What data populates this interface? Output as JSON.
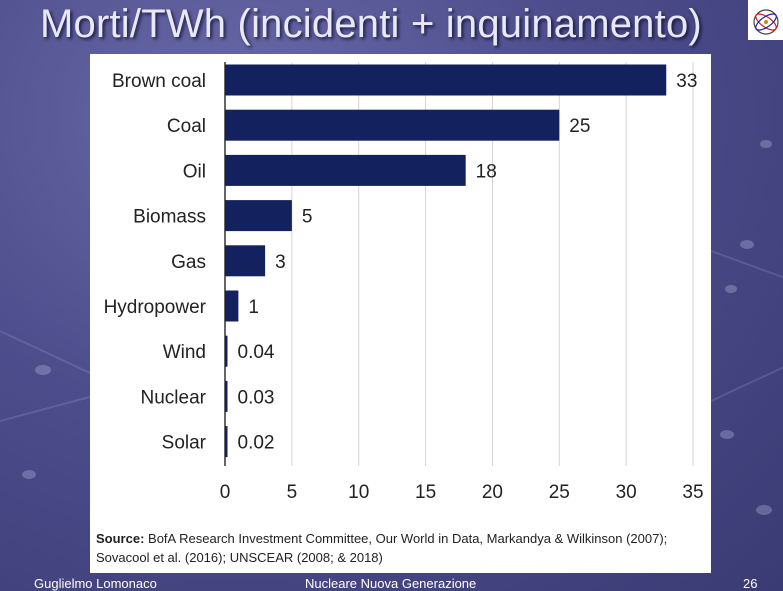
{
  "slide": {
    "title": "Morti/TWh (incidenti + inquinamento)",
    "footer_left": "Guglielmo Lomonaco",
    "footer_center": "Nucleare Nuova Generazione",
    "page_number": "26"
  },
  "colors": {
    "bar": "#13215e",
    "background": "#4d4d8c",
    "card": "#ffffff"
  },
  "source": {
    "label": "Source:",
    "text": "BofA Research Investment Committee, Our World in Data, Markandya & Wilkinson (2007); Sovacool et al. (2016); UNSCEAR (2008; & 2018)"
  },
  "chart_data": {
    "type": "bar",
    "orientation": "horizontal",
    "categories": [
      "Brown coal",
      "Coal",
      "Oil",
      "Biomass",
      "Gas",
      "Hydropower",
      "Wind",
      "Nuclear",
      "Solar"
    ],
    "values": [
      33,
      25,
      18,
      5,
      3,
      1,
      0.04,
      0.03,
      0.02
    ],
    "value_labels": [
      "33",
      "25",
      "18",
      "5",
      "3",
      "1",
      "0.04",
      "0.03",
      "0.02"
    ],
    "xlim": [
      0,
      35
    ],
    "xticks": [
      0,
      5,
      10,
      15,
      20,
      25,
      30,
      35
    ],
    "grid": true,
    "legend": "none"
  }
}
